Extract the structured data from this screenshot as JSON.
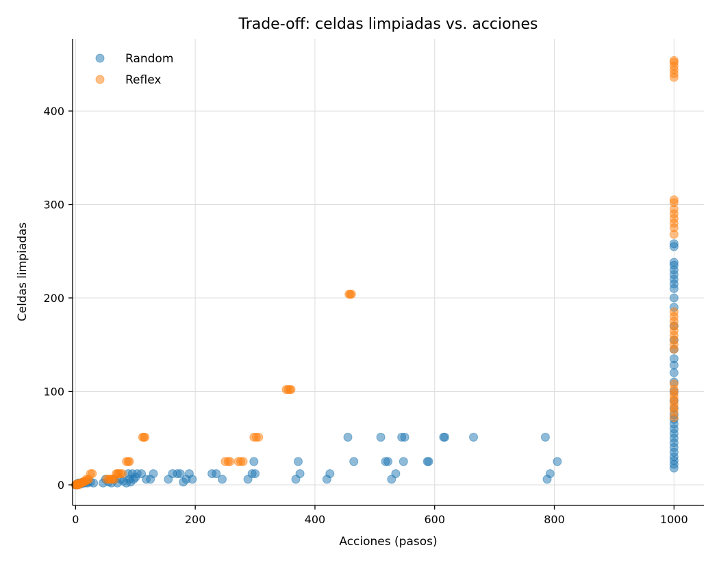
{
  "chart_data": {
    "type": "scatter",
    "title": "Trade-off: celdas limpiadas vs. acciones",
    "xlabel": "Acciones (pasos)",
    "ylabel": "Celdas limpiadas",
    "xlim": [
      -5,
      1050
    ],
    "ylim": [
      -22,
      477
    ],
    "xticks": [
      0,
      200,
      400,
      600,
      800,
      1000
    ],
    "yticks": [
      0,
      100,
      200,
      300,
      400
    ],
    "grid": true,
    "legend_position": "top-left",
    "series": [
      {
        "name": "Random",
        "color": "#1f77b4",
        "points": [
          [
            0,
            0
          ],
          [
            1,
            0
          ],
          [
            2,
            1
          ],
          [
            3,
            0
          ],
          [
            4,
            1
          ],
          [
            5,
            2
          ],
          [
            6,
            1
          ],
          [
            8,
            2
          ],
          [
            10,
            1
          ],
          [
            12,
            3
          ],
          [
            15,
            2
          ],
          [
            18,
            3
          ],
          [
            20,
            2
          ],
          [
            25,
            3
          ],
          [
            30,
            2
          ],
          [
            46,
            2
          ],
          [
            50,
            6
          ],
          [
            55,
            3
          ],
          [
            60,
            2
          ],
          [
            65,
            6
          ],
          [
            70,
            2
          ],
          [
            75,
            6
          ],
          [
            80,
            4
          ],
          [
            85,
            2
          ],
          [
            88,
            12
          ],
          [
            90,
            6
          ],
          [
            92,
            3
          ],
          [
            95,
            12
          ],
          [
            97,
            6
          ],
          [
            100,
            8
          ],
          [
            103,
            12
          ],
          [
            110,
            12
          ],
          [
            118,
            6
          ],
          [
            125,
            6
          ],
          [
            130,
            12
          ],
          [
            155,
            6
          ],
          [
            162,
            12
          ],
          [
            170,
            12
          ],
          [
            175,
            12
          ],
          [
            180,
            3
          ],
          [
            185,
            6
          ],
          [
            190,
            12
          ],
          [
            195,
            6
          ],
          [
            228,
            12
          ],
          [
            235,
            12
          ],
          [
            245,
            6
          ],
          [
            288,
            6
          ],
          [
            295,
            12
          ],
          [
            298,
            25
          ],
          [
            300,
            12
          ],
          [
            368,
            6
          ],
          [
            372,
            25
          ],
          [
            375,
            12
          ],
          [
            420,
            6
          ],
          [
            425,
            12
          ],
          [
            455,
            51
          ],
          [
            465,
            25
          ],
          [
            510,
            51
          ],
          [
            518,
            25
          ],
          [
            522,
            25
          ],
          [
            528,
            6
          ],
          [
            535,
            12
          ],
          [
            545,
            51
          ],
          [
            548,
            25
          ],
          [
            550,
            51
          ],
          [
            588,
            25
          ],
          [
            590,
            25
          ],
          [
            615,
            51
          ],
          [
            617,
            51
          ],
          [
            665,
            51
          ],
          [
            785,
            51
          ],
          [
            788,
            6
          ],
          [
            793,
            12
          ],
          [
            805,
            25
          ],
          [
            1000,
            18
          ],
          [
            1000,
            22
          ],
          [
            1000,
            26
          ],
          [
            1000,
            30
          ],
          [
            1000,
            35
          ],
          [
            1000,
            40
          ],
          [
            1000,
            45
          ],
          [
            1000,
            50
          ],
          [
            1000,
            55
          ],
          [
            1000,
            60
          ],
          [
            1000,
            65
          ],
          [
            1000,
            70
          ],
          [
            1000,
            75
          ],
          [
            1000,
            82
          ],
          [
            1000,
            90
          ],
          [
            1000,
            100
          ],
          [
            1000,
            110
          ],
          [
            1000,
            120
          ],
          [
            1000,
            128
          ],
          [
            1000,
            135
          ],
          [
            1000,
            145
          ],
          [
            1000,
            155
          ],
          [
            1000,
            170
          ],
          [
            1000,
            190
          ],
          [
            1000,
            200
          ],
          [
            1000,
            210
          ],
          [
            1000,
            215
          ],
          [
            1000,
            220
          ],
          [
            1000,
            225
          ],
          [
            1000,
            230
          ],
          [
            1000,
            235
          ],
          [
            1000,
            238
          ],
          [
            1000,
            255
          ],
          [
            1000,
            258
          ]
        ]
      },
      {
        "name": "Reflex",
        "color": "#ff7f0e",
        "points": [
          [
            0,
            0
          ],
          [
            1,
            0
          ],
          [
            2,
            1
          ],
          [
            3,
            0
          ],
          [
            4,
            1
          ],
          [
            5,
            0
          ],
          [
            6,
            1
          ],
          [
            8,
            2
          ],
          [
            10,
            2
          ],
          [
            12,
            3
          ],
          [
            14,
            3
          ],
          [
            16,
            4
          ],
          [
            18,
            6
          ],
          [
            20,
            5
          ],
          [
            22,
            6
          ],
          [
            25,
            12
          ],
          [
            28,
            12
          ],
          [
            52,
            6
          ],
          [
            55,
            6
          ],
          [
            58,
            6
          ],
          [
            60,
            6
          ],
          [
            62,
            6
          ],
          [
            65,
            6
          ],
          [
            68,
            12
          ],
          [
            70,
            12
          ],
          [
            72,
            12
          ],
          [
            75,
            12
          ],
          [
            78,
            12
          ],
          [
            85,
            25
          ],
          [
            88,
            25
          ],
          [
            90,
            25
          ],
          [
            112,
            51
          ],
          [
            114,
            51
          ],
          [
            116,
            51
          ],
          [
            250,
            25
          ],
          [
            255,
            25
          ],
          [
            258,
            25
          ],
          [
            272,
            25
          ],
          [
            276,
            25
          ],
          [
            280,
            25
          ],
          [
            298,
            51
          ],
          [
            302,
            51
          ],
          [
            306,
            51
          ],
          [
            352,
            102
          ],
          [
            355,
            102
          ],
          [
            358,
            102
          ],
          [
            360,
            102
          ],
          [
            457,
            204
          ],
          [
            459,
            204
          ],
          [
            461,
            204
          ],
          [
            1000,
            72
          ],
          [
            1000,
            78
          ],
          [
            1000,
            82
          ],
          [
            1000,
            86
          ],
          [
            1000,
            90
          ],
          [
            1000,
            94
          ],
          [
            1000,
            98
          ],
          [
            1000,
            102
          ],
          [
            1000,
            108
          ],
          [
            1000,
            145
          ],
          [
            1000,
            150
          ],
          [
            1000,
            155
          ],
          [
            1000,
            160
          ],
          [
            1000,
            165
          ],
          [
            1000,
            170
          ],
          [
            1000,
            175
          ],
          [
            1000,
            180
          ],
          [
            1000,
            185
          ],
          [
            1000,
            268
          ],
          [
            1000,
            275
          ],
          [
            1000,
            280
          ],
          [
            1000,
            285
          ],
          [
            1000,
            290
          ],
          [
            1000,
            295
          ],
          [
            1000,
            302
          ],
          [
            1000,
            305
          ],
          [
            1000,
            436
          ],
          [
            1000,
            440
          ],
          [
            1000,
            444
          ],
          [
            1000,
            448
          ],
          [
            1000,
            452
          ],
          [
            1000,
            454
          ]
        ]
      }
    ]
  }
}
